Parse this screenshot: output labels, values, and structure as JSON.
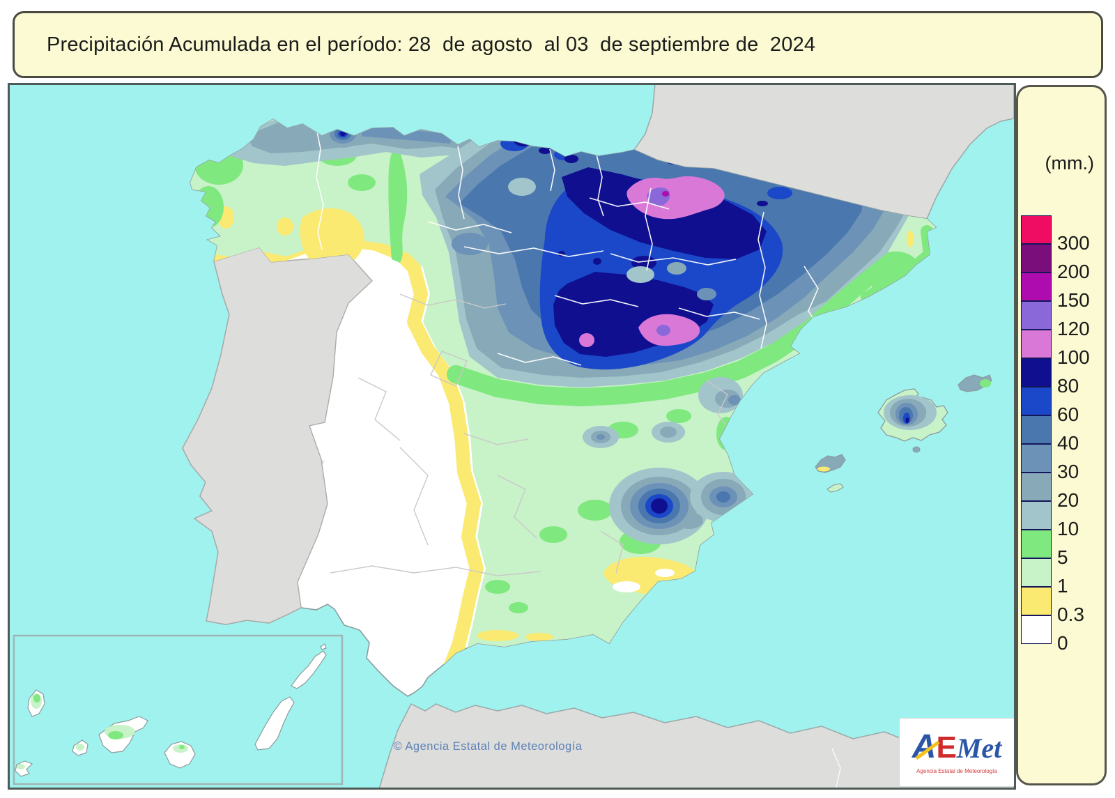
{
  "title": {
    "text": "Precipitación Acumulada en el período: 28  de agosto  al 03  de septiembre de  2024"
  },
  "legend": {
    "unit_label": "(mm.)",
    "items": [
      {
        "label": "300",
        "color": "#EE0D62"
      },
      {
        "label": "200",
        "color": "#7A0E7A"
      },
      {
        "label": "150",
        "color": "#AE0CAE"
      },
      {
        "label": "120",
        "color": "#8A68DA"
      },
      {
        "label": "100",
        "color": "#DA78D8"
      },
      {
        "label": "80",
        "color": "#0F0F90"
      },
      {
        "label": "60",
        "color": "#1A48C8"
      },
      {
        "label": "40",
        "color": "#4A77AE"
      },
      {
        "label": "30",
        "color": "#6D92B8"
      },
      {
        "label": "20",
        "color": "#87A9B8"
      },
      {
        "label": "10",
        "color": "#A2C4CB"
      },
      {
        "label": "5",
        "color": "#7FE87F"
      },
      {
        "label": "1",
        "color": "#C8F2C8"
      },
      {
        "label": "0.3",
        "color": "#FAEA72"
      },
      {
        "label": "0",
        "color": "#FFFFFF"
      }
    ]
  },
  "map": {
    "colors": {
      "sea": "#9FF2EE",
      "outside_land": "#DDDDDB",
      "outside_coast": "#9AA8A8",
      "spain_base": "#FFFFFF",
      "spain_coast": "#8C9C9C",
      "province_border_light": "#FFFFFF",
      "province_border_gray": "#C9C9C9",
      "inset_border": "#9FB6B6"
    },
    "copyright": "© Agencia Estatal de Meteorología"
  },
  "logo": {
    "a": "A",
    "e": "E",
    "met": "Met",
    "subtitle": "Agencia Estatal de Meteorología"
  }
}
